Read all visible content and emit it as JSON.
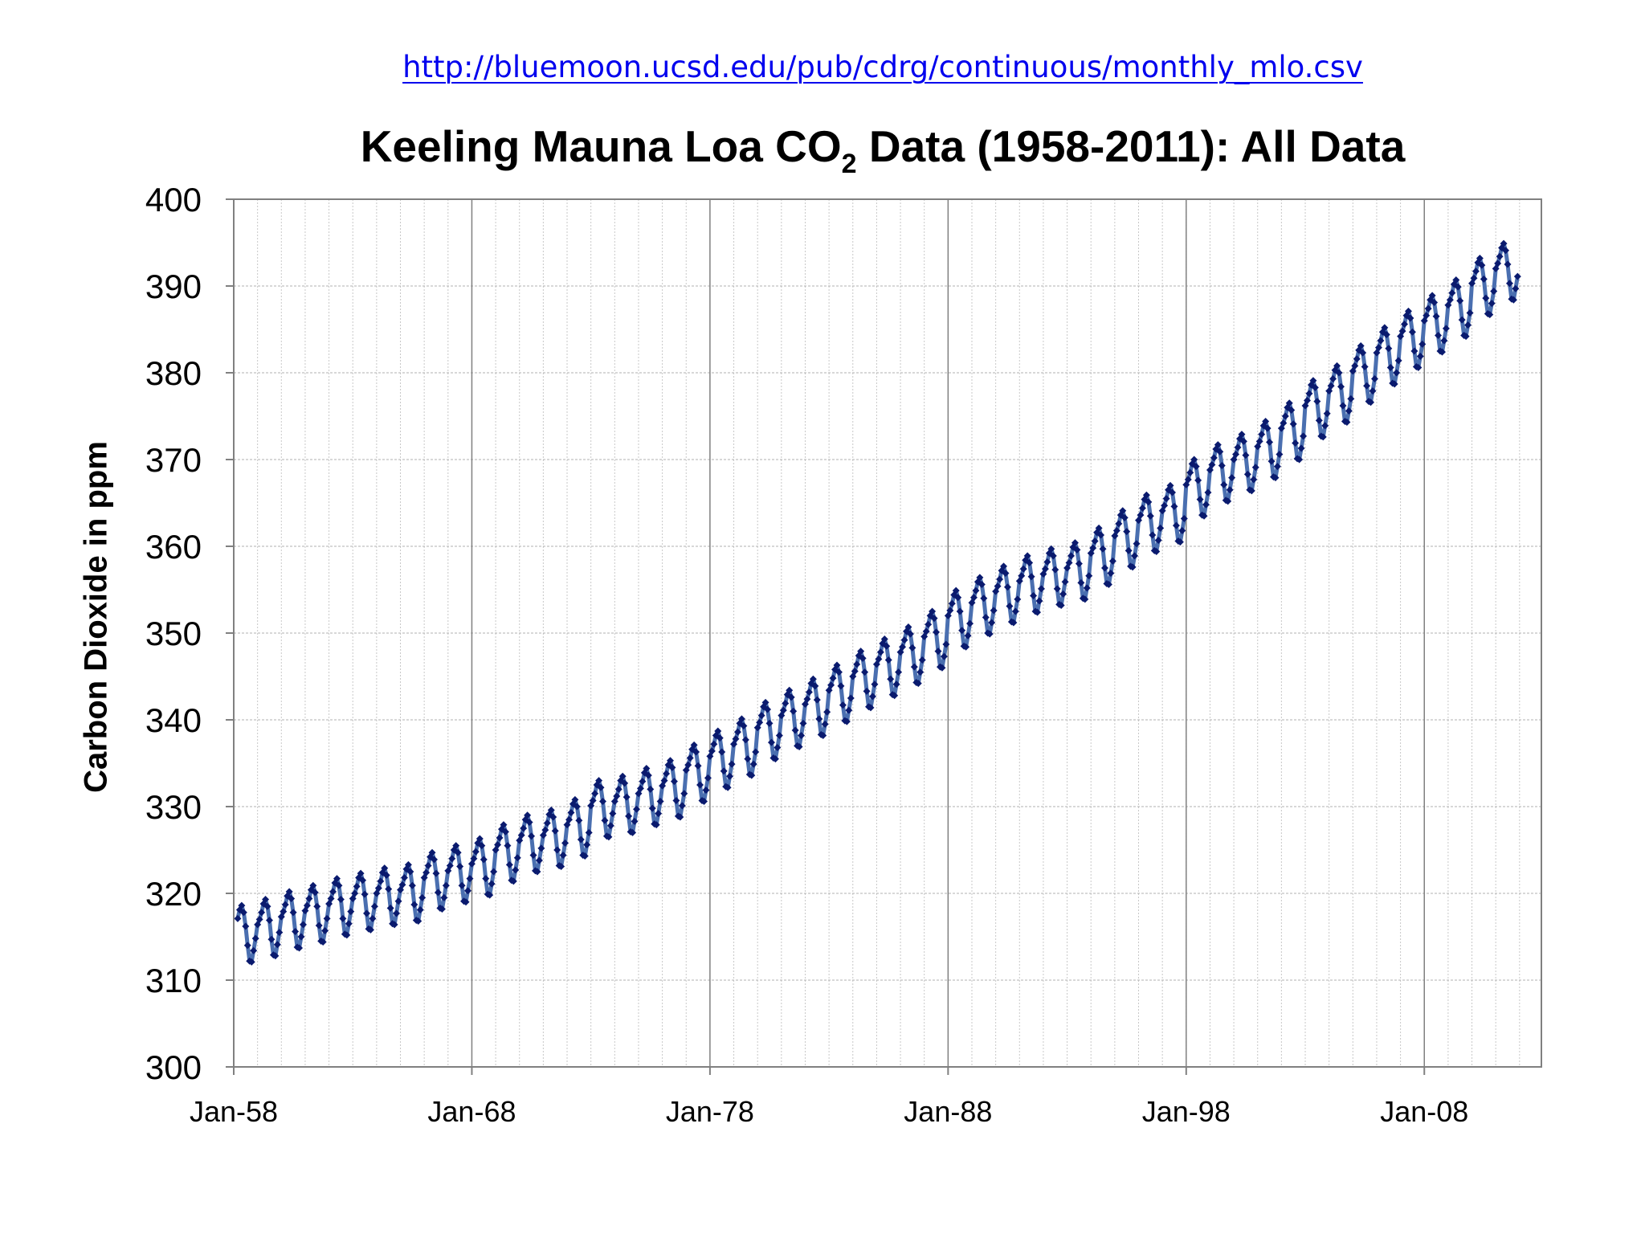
{
  "source_link": "http://bluemoon.ucsd.edu/pub/cdrg/continuous/monthly_mlo.csv",
  "chart_data": {
    "type": "line",
    "title_main": "Keeling Mauna Loa CO",
    "title_subscript": "2",
    "title_rest": " Data (1958-2011):  All Data",
    "ylabel": "Carbon Dioxide in ppm",
    "xlabel": "",
    "ylim": [
      300,
      400
    ],
    "y_ticks": [
      300,
      310,
      320,
      330,
      340,
      350,
      360,
      370,
      380,
      390,
      400
    ],
    "x_range": [
      "1958-01",
      "2012-12"
    ],
    "x_ticks": [
      {
        "date": "1958-01",
        "label": "Jan-58"
      },
      {
        "date": "1968-01",
        "label": "Jan-68"
      },
      {
        "date": "1978-01",
        "label": "Jan-78"
      },
      {
        "date": "1988-01",
        "label": "Jan-88"
      },
      {
        "date": "1998-01",
        "label": "Jan-98"
      },
      {
        "date": "2008-01",
        "label": "Jan-08"
      }
    ],
    "minor_grid": "yearly",
    "grid": true,
    "legend": "none",
    "series_color": "#4a6fb0",
    "marker_color": "#0a1a6e",
    "start_month": "1958-03",
    "end_month": "2011-12",
    "annual_means": [
      {
        "year": 1958,
        "value": 315.3
      },
      {
        "year": 1959,
        "value": 316.0
      },
      {
        "year": 1960,
        "value": 316.9
      },
      {
        "year": 1961,
        "value": 317.6
      },
      {
        "year": 1962,
        "value": 318.4
      },
      {
        "year": 1963,
        "value": 319.0
      },
      {
        "year": 1964,
        "value": 319.6
      },
      {
        "year": 1965,
        "value": 320.0
      },
      {
        "year": 1966,
        "value": 321.4
      },
      {
        "year": 1967,
        "value": 322.2
      },
      {
        "year": 1968,
        "value": 323.0
      },
      {
        "year": 1969,
        "value": 324.6
      },
      {
        "year": 1970,
        "value": 325.7
      },
      {
        "year": 1971,
        "value": 326.3
      },
      {
        "year": 1972,
        "value": 327.5
      },
      {
        "year": 1973,
        "value": 329.7
      },
      {
        "year": 1974,
        "value": 330.2
      },
      {
        "year": 1975,
        "value": 331.1
      },
      {
        "year": 1976,
        "value": 332.0
      },
      {
        "year": 1977,
        "value": 333.8
      },
      {
        "year": 1978,
        "value": 335.4
      },
      {
        "year": 1979,
        "value": 336.8
      },
      {
        "year": 1980,
        "value": 338.7
      },
      {
        "year": 1981,
        "value": 340.1
      },
      {
        "year": 1982,
        "value": 341.4
      },
      {
        "year": 1983,
        "value": 343.0
      },
      {
        "year": 1984,
        "value": 344.6
      },
      {
        "year": 1985,
        "value": 346.0
      },
      {
        "year": 1986,
        "value": 347.4
      },
      {
        "year": 1987,
        "value": 349.2
      },
      {
        "year": 1988,
        "value": 351.6
      },
      {
        "year": 1989,
        "value": 353.1
      },
      {
        "year": 1990,
        "value": 354.4
      },
      {
        "year": 1991,
        "value": 355.6
      },
      {
        "year": 1992,
        "value": 356.4
      },
      {
        "year": 1993,
        "value": 357.1
      },
      {
        "year": 1994,
        "value": 358.8
      },
      {
        "year": 1995,
        "value": 360.8
      },
      {
        "year": 1996,
        "value": 362.6
      },
      {
        "year": 1997,
        "value": 363.7
      },
      {
        "year": 1998,
        "value": 366.7
      },
      {
        "year": 1999,
        "value": 368.4
      },
      {
        "year": 2000,
        "value": 369.6
      },
      {
        "year": 2001,
        "value": 371.1
      },
      {
        "year": 2002,
        "value": 373.2
      },
      {
        "year": 2003,
        "value": 375.8
      },
      {
        "year": 2004,
        "value": 377.5
      },
      {
        "year": 2005,
        "value": 379.8
      },
      {
        "year": 2006,
        "value": 381.9
      },
      {
        "year": 2007,
        "value": 383.8
      },
      {
        "year": 2008,
        "value": 385.6
      },
      {
        "year": 2009,
        "value": 387.4
      },
      {
        "year": 2010,
        "value": 389.9
      },
      {
        "year": 2011,
        "value": 391.6
      }
    ],
    "seasonal_offsets": [
      0.4,
      1.0,
      1.8,
      2.8,
      3.3,
      2.5,
      0.9,
      -1.3,
      -3.1,
      -3.2,
      -1.9,
      -0.5
    ]
  }
}
